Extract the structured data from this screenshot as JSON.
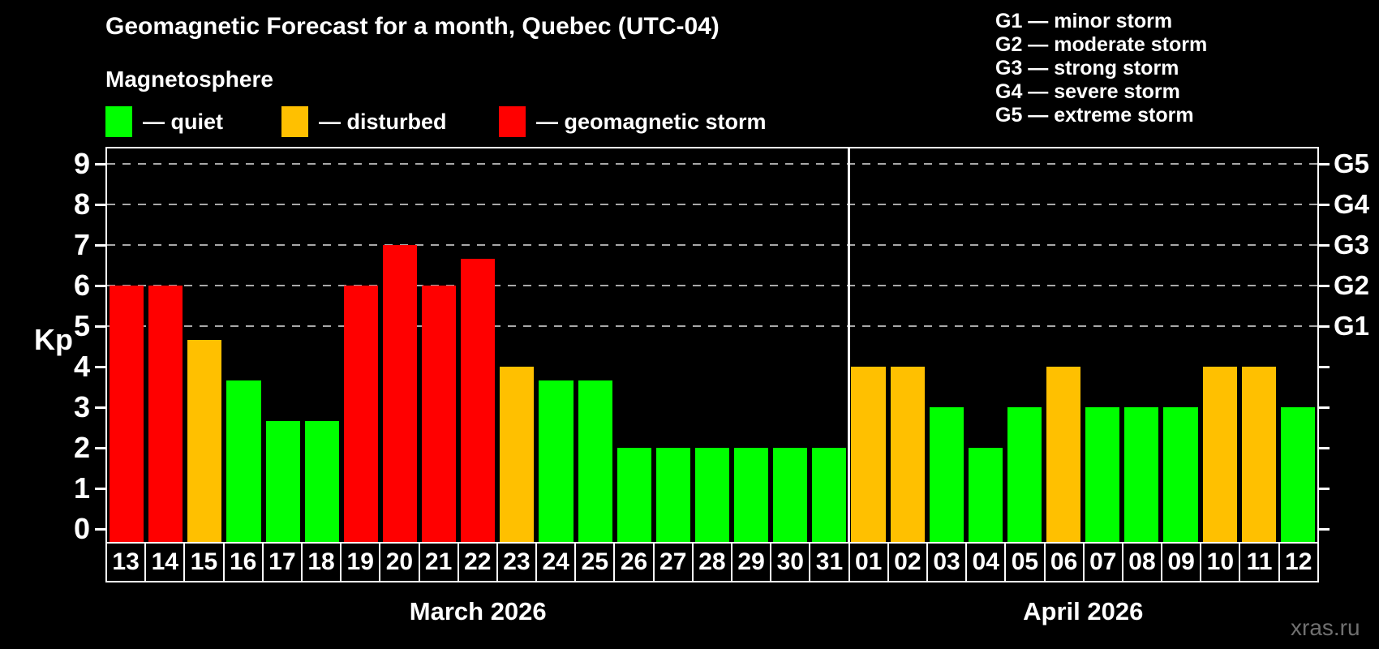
{
  "title": "Geomagnetic Forecast for a month, Quebec (UTC-04)",
  "subtitle": "Magnetosphere",
  "legend": {
    "items": [
      {
        "key": "quiet",
        "label": "— quiet",
        "color": "#00ff00"
      },
      {
        "key": "disturbed",
        "label": "— disturbed",
        "color": "#ffc000"
      },
      {
        "key": "storm",
        "label": "— geomagnetic storm",
        "color": "#ff0000"
      }
    ]
  },
  "g_scale_legend": {
    "lines": [
      "G1 — minor storm",
      "G2 — moderate storm",
      "G3 — strong storm",
      "G4 — severe storm",
      "G5 — extreme storm"
    ]
  },
  "axes": {
    "kp_label": "Kp",
    "kp_ticks": [
      "0",
      "1",
      "2",
      "3",
      "4",
      "5",
      "6",
      "7",
      "8",
      "9"
    ],
    "right_labels": [
      {
        "text": "G1",
        "kp": 5
      },
      {
        "text": "G2",
        "kp": 6
      },
      {
        "text": "G3",
        "kp": 7
      },
      {
        "text": "G4",
        "kp": 8
      },
      {
        "text": "G5",
        "kp": 9
      }
    ]
  },
  "watermark": "xras.ru",
  "chart_data": {
    "type": "bar",
    "ylabel": "Kp",
    "ylim": [
      0,
      9
    ],
    "grid": "horizontal dashed lines at Kp 5 to 9 (G1-G5 levels)",
    "gridlines_at": [
      5,
      6,
      7,
      8,
      9
    ],
    "legend_position": "top-left",
    "colors": {
      "quiet": "#00ff00",
      "disturbed": "#ffc000",
      "storm": "#ff0000"
    },
    "months": [
      {
        "label": "March 2026",
        "days": [
          "13",
          "14",
          "15",
          "16",
          "17",
          "18",
          "19",
          "20",
          "21",
          "22",
          "23",
          "24",
          "25",
          "26",
          "27",
          "28",
          "29",
          "30",
          "31"
        ],
        "values": [
          6,
          6,
          4.67,
          3.67,
          2.67,
          2.67,
          6,
          7,
          6,
          6.67,
          4,
          3.67,
          3.67,
          2,
          2,
          2,
          2,
          2,
          2
        ],
        "levels": [
          "storm",
          "storm",
          "disturbed",
          "quiet",
          "quiet",
          "quiet",
          "storm",
          "storm",
          "storm",
          "storm",
          "disturbed",
          "quiet",
          "quiet",
          "quiet",
          "quiet",
          "quiet",
          "quiet",
          "quiet",
          "quiet"
        ]
      },
      {
        "label": "April 2026",
        "days": [
          "01",
          "02",
          "03",
          "04",
          "05",
          "06",
          "07",
          "08",
          "09",
          "10",
          "11",
          "12"
        ],
        "values": [
          4,
          4,
          3,
          2,
          3,
          4,
          3,
          3,
          3,
          4,
          4,
          3
        ],
        "levels": [
          "disturbed",
          "disturbed",
          "quiet",
          "quiet",
          "quiet",
          "disturbed",
          "quiet",
          "quiet",
          "quiet",
          "disturbed",
          "disturbed",
          "quiet"
        ]
      }
    ]
  }
}
